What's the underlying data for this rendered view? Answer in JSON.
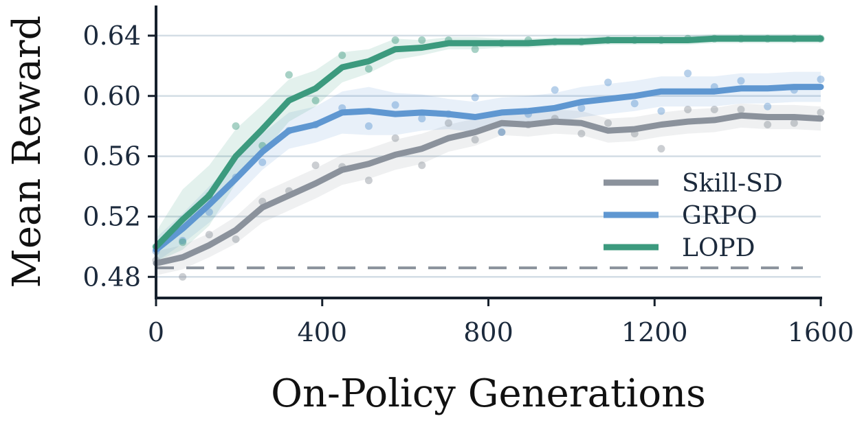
{
  "chart_data": {
    "type": "line",
    "xlabel": "On-Policy Generations",
    "ylabel": "Mean Reward",
    "xlim": [
      0,
      1600
    ],
    "ylim": [
      0.466,
      0.66
    ],
    "xticks": [
      0,
      400,
      800,
      1200,
      1600
    ],
    "yticks": [
      0.48,
      0.52,
      0.56,
      0.6,
      0.64
    ],
    "xtick_labels": [
      "0",
      "400",
      "800",
      "1200",
      "1600"
    ],
    "ytick_labels": [
      "0.48",
      "0.52",
      "0.56",
      "0.60",
      "0.64"
    ],
    "grid": "horizontal",
    "legend_position": "right",
    "baseline": {
      "y": 0.486,
      "style": "dashed",
      "color": "#8b929c"
    },
    "x": [
      0,
      64,
      128,
      192,
      256,
      320,
      384,
      448,
      512,
      576,
      640,
      704,
      768,
      832,
      896,
      960,
      1024,
      1088,
      1152,
      1216,
      1280,
      1344,
      1408,
      1472,
      1536,
      1600
    ],
    "series": [
      {
        "name": "Skill-SD",
        "color": "#8b929c",
        "values": [
          0.489,
          0.493,
          0.501,
          0.511,
          0.526,
          0.534,
          0.542,
          0.551,
          0.555,
          0.561,
          0.565,
          0.572,
          0.576,
          0.582,
          0.581,
          0.583,
          0.582,
          0.577,
          0.578,
          0.581,
          0.583,
          0.584,
          0.587,
          0.586,
          0.586,
          0.585
        ],
        "band": [
          0.008,
          0.008,
          0.008,
          0.009,
          0.01,
          0.01,
          0.01,
          0.01,
          0.01,
          0.01,
          0.01,
          0.009,
          0.009,
          0.008,
          0.008,
          0.008,
          0.008,
          0.008,
          0.008,
          0.008,
          0.008,
          0.008,
          0.008,
          0.008,
          0.008,
          0.008
        ],
        "raw": [
          0.491,
          0.48,
          0.508,
          0.505,
          0.53,
          0.537,
          0.554,
          0.553,
          0.544,
          0.572,
          0.554,
          0.582,
          0.571,
          0.576,
          0.581,
          0.585,
          0.575,
          0.582,
          0.575,
          0.565,
          0.591,
          0.591,
          0.591,
          0.581,
          0.582,
          0.589
        ]
      },
      {
        "name": "GRPO",
        "color": "#5f97d1",
        "values": [
          0.498,
          0.512,
          0.528,
          0.545,
          0.563,
          0.577,
          0.581,
          0.589,
          0.59,
          0.588,
          0.589,
          0.588,
          0.586,
          0.589,
          0.59,
          0.592,
          0.596,
          0.598,
          0.6,
          0.603,
          0.603,
          0.603,
          0.605,
          0.605,
          0.606,
          0.606
        ],
        "band": [
          0.008,
          0.01,
          0.012,
          0.012,
          0.012,
          0.012,
          0.012,
          0.014,
          0.016,
          0.014,
          0.012,
          0.01,
          0.01,
          0.01,
          0.01,
          0.01,
          0.01,
          0.01,
          0.01,
          0.01,
          0.01,
          0.01,
          0.01,
          0.01,
          0.01,
          0.01
        ],
        "raw": [
          0.497,
          0.504,
          0.523,
          0.546,
          0.556,
          0.577,
          0.581,
          0.592,
          0.58,
          0.594,
          0.585,
          0.588,
          0.599,
          0.576,
          0.588,
          0.604,
          0.592,
          0.609,
          0.595,
          0.59,
          0.615,
          0.606,
          0.61,
          0.593,
          0.604,
          0.611
        ]
      },
      {
        "name": "LOPD",
        "color": "#3c9a7e",
        "values": [
          0.5,
          0.518,
          0.534,
          0.56,
          0.578,
          0.597,
          0.605,
          0.619,
          0.623,
          0.631,
          0.632,
          0.635,
          0.635,
          0.635,
          0.635,
          0.636,
          0.636,
          0.637,
          0.637,
          0.637,
          0.637,
          0.638,
          0.638,
          0.638,
          0.638,
          0.638
        ],
        "band": [
          0.01,
          0.02,
          0.02,
          0.018,
          0.016,
          0.014,
          0.012,
          0.01,
          0.008,
          0.007,
          0.005,
          0.004,
          0.004,
          0.003,
          0.003,
          0.003,
          0.003,
          0.003,
          0.003,
          0.003,
          0.003,
          0.003,
          0.003,
          0.003,
          0.003,
          0.003
        ],
        "raw": [
          0.5,
          0.503,
          0.534,
          0.58,
          0.567,
          0.614,
          0.597,
          0.627,
          0.618,
          0.637,
          0.637,
          0.637,
          0.631,
          0.635,
          0.637,
          0.636,
          0.636,
          0.637,
          0.637,
          0.637,
          0.638,
          0.638,
          0.638,
          0.638,
          0.638,
          0.638
        ]
      }
    ]
  }
}
